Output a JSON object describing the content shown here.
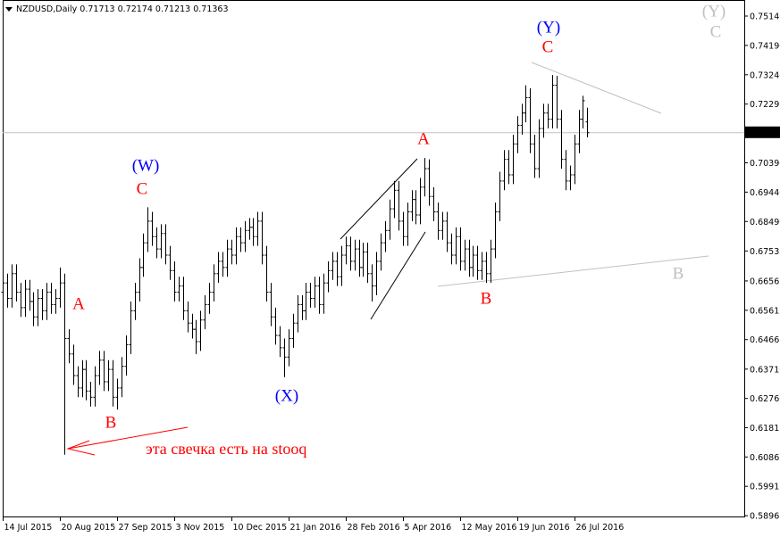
{
  "chart_data": {
    "type": "ohlc",
    "title": "NZDUSD,Daily  0.71713 0.72174 0.71213 0.71363",
    "color": "#000000",
    "categories": [
      "14 Jul 2015",
      null,
      null,
      null,
      null,
      null,
      null,
      null,
      null,
      null,
      null,
      null,
      null,
      "20 Aug 2015",
      null,
      null,
      null,
      null,
      null,
      null,
      null,
      null,
      null,
      null,
      null,
      null,
      "27 Sep 2015",
      null,
      null,
      null,
      null,
      null,
      null,
      null,
      null,
      null,
      null,
      null,
      null,
      "3 Nov 2015",
      null,
      null,
      null,
      null,
      null,
      null,
      null,
      null,
      null,
      null,
      null,
      null,
      "10 Dec 2015",
      null,
      null,
      null,
      null,
      null,
      null,
      null,
      null,
      null,
      null,
      null,
      null,
      "21 Jan 2016",
      null,
      null,
      null,
      null,
      null,
      null,
      null,
      null,
      null,
      null,
      null,
      null,
      "28 Feb 2016",
      null,
      null,
      null,
      null,
      null,
      null,
      null,
      null,
      null,
      null,
      null,
      null,
      "5 Apr 2016",
      null,
      null,
      null,
      null,
      null,
      null,
      null,
      null,
      null,
      null,
      null,
      null,
      "12 May 2016",
      null,
      null,
      null,
      null,
      null,
      null,
      null,
      null,
      null,
      null,
      null,
      null,
      "19 Jun 2016",
      null,
      null,
      null,
      null,
      null,
      null,
      null,
      null,
      null,
      null,
      null,
      null,
      "26 Jul 2016",
      null,
      null,
      null
    ],
    "open": [
      0.662,
      0.665,
      0.66,
      0.668,
      0.662,
      0.657,
      0.663,
      0.659,
      0.654,
      0.66,
      0.656,
      0.662,
      0.658,
      0.66,
      0.665,
      0.647,
      0.642,
      0.635,
      0.631,
      0.637,
      0.63,
      0.628,
      0.635,
      0.64,
      0.633,
      0.637,
      0.628,
      0.631,
      0.638,
      0.645,
      0.656,
      0.662,
      0.67,
      0.678,
      0.685,
      0.68,
      0.676,
      0.681,
      0.674,
      0.669,
      0.662,
      0.664,
      0.656,
      0.652,
      0.65,
      0.646,
      0.653,
      0.658,
      0.662,
      0.668,
      0.672,
      0.67,
      0.676,
      0.674,
      0.68,
      0.678,
      0.682,
      0.683,
      0.68,
      0.685,
      0.674,
      0.662,
      0.654,
      0.648,
      0.644,
      0.641,
      0.647,
      0.652,
      0.658,
      0.656,
      0.662,
      0.66,
      0.664,
      0.658,
      0.665,
      0.669,
      0.672,
      0.667,
      0.674,
      0.677,
      0.672,
      0.676,
      0.67,
      0.675,
      0.668,
      0.664,
      0.672,
      0.678,
      0.682,
      0.689,
      0.695,
      0.685,
      0.68,
      0.688,
      0.692,
      0.687,
      0.696,
      0.702,
      0.693,
      0.688,
      0.682,
      0.685,
      0.678,
      0.674,
      0.68,
      0.672,
      0.676,
      0.67,
      0.674,
      0.669,
      0.672,
      0.668,
      0.676,
      0.688,
      0.698,
      0.705,
      0.7,
      0.71,
      0.716,
      0.72,
      0.725,
      0.71,
      0.702,
      0.715,
      0.72,
      0.718,
      0.729,
      0.718,
      0.705,
      0.698,
      0.7,
      0.71,
      0.718,
      0.71713
    ],
    "high": [
      0.668,
      0.668,
      0.671,
      0.671,
      0.665,
      0.666,
      0.666,
      0.662,
      0.663,
      0.663,
      0.665,
      0.665,
      0.663,
      0.67,
      0.668,
      0.65,
      0.645,
      0.638,
      0.64,
      0.64,
      0.633,
      0.638,
      0.643,
      0.643,
      0.64,
      0.64,
      0.634,
      0.641,
      0.648,
      0.659,
      0.665,
      0.673,
      0.681,
      0.6895,
      0.688,
      0.683,
      0.684,
      0.684,
      0.677,
      0.672,
      0.667,
      0.667,
      0.659,
      0.655,
      0.653,
      0.656,
      0.661,
      0.665,
      0.671,
      0.675,
      0.675,
      0.679,
      0.679,
      0.683,
      0.683,
      0.685,
      0.686,
      0.686,
      0.688,
      0.688,
      0.677,
      0.665,
      0.657,
      0.651,
      0.647,
      0.65,
      0.655,
      0.661,
      0.661,
      0.665,
      0.665,
      0.667,
      0.667,
      0.668,
      0.672,
      0.675,
      0.675,
      0.677,
      0.68,
      0.68,
      0.679,
      0.679,
      0.678,
      0.678,
      0.671,
      0.675,
      0.681,
      0.685,
      0.692,
      0.698,
      0.698,
      0.688,
      0.691,
      0.695,
      0.695,
      0.699,
      0.7055,
      0.705,
      0.696,
      0.691,
      0.688,
      0.688,
      0.681,
      0.683,
      0.683,
      0.679,
      0.679,
      0.677,
      0.677,
      0.675,
      0.675,
      0.679,
      0.691,
      0.701,
      0.708,
      0.708,
      0.713,
      0.719,
      0.723,
      0.729,
      0.728,
      0.713,
      0.718,
      0.723,
      0.723,
      0.7323,
      0.732,
      0.721,
      0.708,
      0.703,
      0.713,
      0.721,
      0.7256,
      0.72174
    ],
    "low": [
      0.659,
      0.657,
      0.657,
      0.659,
      0.654,
      0.654,
      0.656,
      0.651,
      0.651,
      0.653,
      0.653,
      0.655,
      0.655,
      0.657,
      0.6094,
      0.639,
      0.632,
      0.628,
      0.628,
      0.627,
      0.625,
      0.625,
      0.632,
      0.63,
      0.63,
      0.625,
      0.624,
      0.628,
      0.635,
      0.642,
      0.653,
      0.659,
      0.667,
      0.675,
      0.677,
      0.673,
      0.673,
      0.671,
      0.666,
      0.659,
      0.659,
      0.653,
      0.649,
      0.647,
      0.642,
      0.643,
      0.65,
      0.655,
      0.659,
      0.665,
      0.667,
      0.667,
      0.671,
      0.671,
      0.675,
      0.675,
      0.679,
      0.677,
      0.677,
      0.671,
      0.659,
      0.651,
      0.645,
      0.641,
      0.6345,
      0.638,
      0.644,
      0.649,
      0.653,
      0.653,
      0.657,
      0.657,
      0.655,
      0.655,
      0.662,
      0.666,
      0.664,
      0.664,
      0.671,
      0.669,
      0.669,
      0.667,
      0.667,
      0.665,
      0.659,
      0.661,
      0.669,
      0.675,
      0.679,
      0.686,
      0.682,
      0.677,
      0.677,
      0.685,
      0.684,
      0.684,
      0.693,
      0.69,
      0.685,
      0.679,
      0.679,
      0.675,
      0.671,
      0.671,
      0.669,
      0.669,
      0.667,
      0.667,
      0.666,
      0.666,
      0.665,
      0.665,
      0.673,
      0.685,
      0.695,
      0.697,
      0.697,
      0.707,
      0.713,
      0.717,
      0.707,
      0.699,
      0.699,
      0.712,
      0.715,
      0.715,
      0.715,
      0.702,
      0.695,
      0.695,
      0.697,
      0.707,
      0.715,
      0.71213
    ],
    "close": [
      0.665,
      0.66,
      0.668,
      0.662,
      0.657,
      0.663,
      0.659,
      0.654,
      0.66,
      0.656,
      0.662,
      0.658,
      0.66,
      0.665,
      0.647,
      0.642,
      0.635,
      0.631,
      0.637,
      0.63,
      0.628,
      0.635,
      0.64,
      0.633,
      0.637,
      0.628,
      0.631,
      0.638,
      0.645,
      0.656,
      0.662,
      0.67,
      0.678,
      0.685,
      0.68,
      0.676,
      0.681,
      0.674,
      0.669,
      0.662,
      0.664,
      0.656,
      0.652,
      0.65,
      0.646,
      0.653,
      0.658,
      0.662,
      0.668,
      0.672,
      0.67,
      0.676,
      0.674,
      0.68,
      0.678,
      0.682,
      0.683,
      0.68,
      0.685,
      0.674,
      0.662,
      0.654,
      0.648,
      0.644,
      0.641,
      0.647,
      0.652,
      0.658,
      0.656,
      0.662,
      0.66,
      0.664,
      0.658,
      0.665,
      0.669,
      0.672,
      0.667,
      0.674,
      0.677,
      0.672,
      0.676,
      0.67,
      0.675,
      0.668,
      0.664,
      0.672,
      0.678,
      0.682,
      0.689,
      0.695,
      0.685,
      0.68,
      0.688,
      0.692,
      0.687,
      0.696,
      0.702,
      0.693,
      0.688,
      0.682,
      0.685,
      0.678,
      0.674,
      0.68,
      0.672,
      0.676,
      0.67,
      0.674,
      0.669,
      0.672,
      0.668,
      0.676,
      0.688,
      0.698,
      0.705,
      0.7,
      0.71,
      0.716,
      0.72,
      0.725,
      0.71,
      0.702,
      0.715,
      0.72,
      0.718,
      0.729,
      0.718,
      0.705,
      0.698,
      0.7,
      0.71,
      0.718,
      0.724,
      0.71363
    ],
    "ylim": [
      0.5891,
      0.7566
    ],
    "yticks": [
      {
        "value": 0.7514,
        "label": "0.75140"
      },
      {
        "value": 0.7419,
        "label": "0.74190"
      },
      {
        "value": 0.7324,
        "label": "0.73240"
      },
      {
        "value": 0.7229,
        "label": "0.72290"
      },
      {
        "value": 0.7039,
        "label": "0.70390"
      },
      {
        "value": 0.6944,
        "label": "0.69440"
      },
      {
        "value": 0.6849,
        "label": "0.68490"
      },
      0.67535,
      0.66565,
      0.65615,
      0.64665,
      {
        "value": 0.6371,
        "label": "0.63710"
      },
      {
        "value": 0.6276,
        "label": "0.62760"
      },
      0.61815,
      0.60865,
      0.59915,
      0.58965
    ],
    "current_price": 0.71363,
    "annotations": [
      {
        "text": "(W)",
        "color": "#0000ff"
      },
      {
        "text": "C",
        "color": "#ff0000"
      },
      {
        "text": "A",
        "color": "#ff0000"
      },
      {
        "text": "B",
        "color": "#ff0000"
      },
      {
        "text": "(X)",
        "color": "#0000ff"
      },
      {
        "text": "A",
        "color": "#ff0000"
      },
      {
        "text": "B",
        "color": "#ff0000"
      },
      {
        "text": "(Y)",
        "color": "#0000ff"
      },
      {
        "text": "C",
        "color": "#ff0000"
      },
      {
        "text": "(Y)",
        "color": "#c0c0c0"
      },
      {
        "text": "C",
        "color": "#c0c0c0"
      },
      {
        "text": "B",
        "color": "#c0c0c0"
      },
      {
        "text": "эта свечка есть на stooq",
        "color": "#ff0000"
      }
    ]
  }
}
